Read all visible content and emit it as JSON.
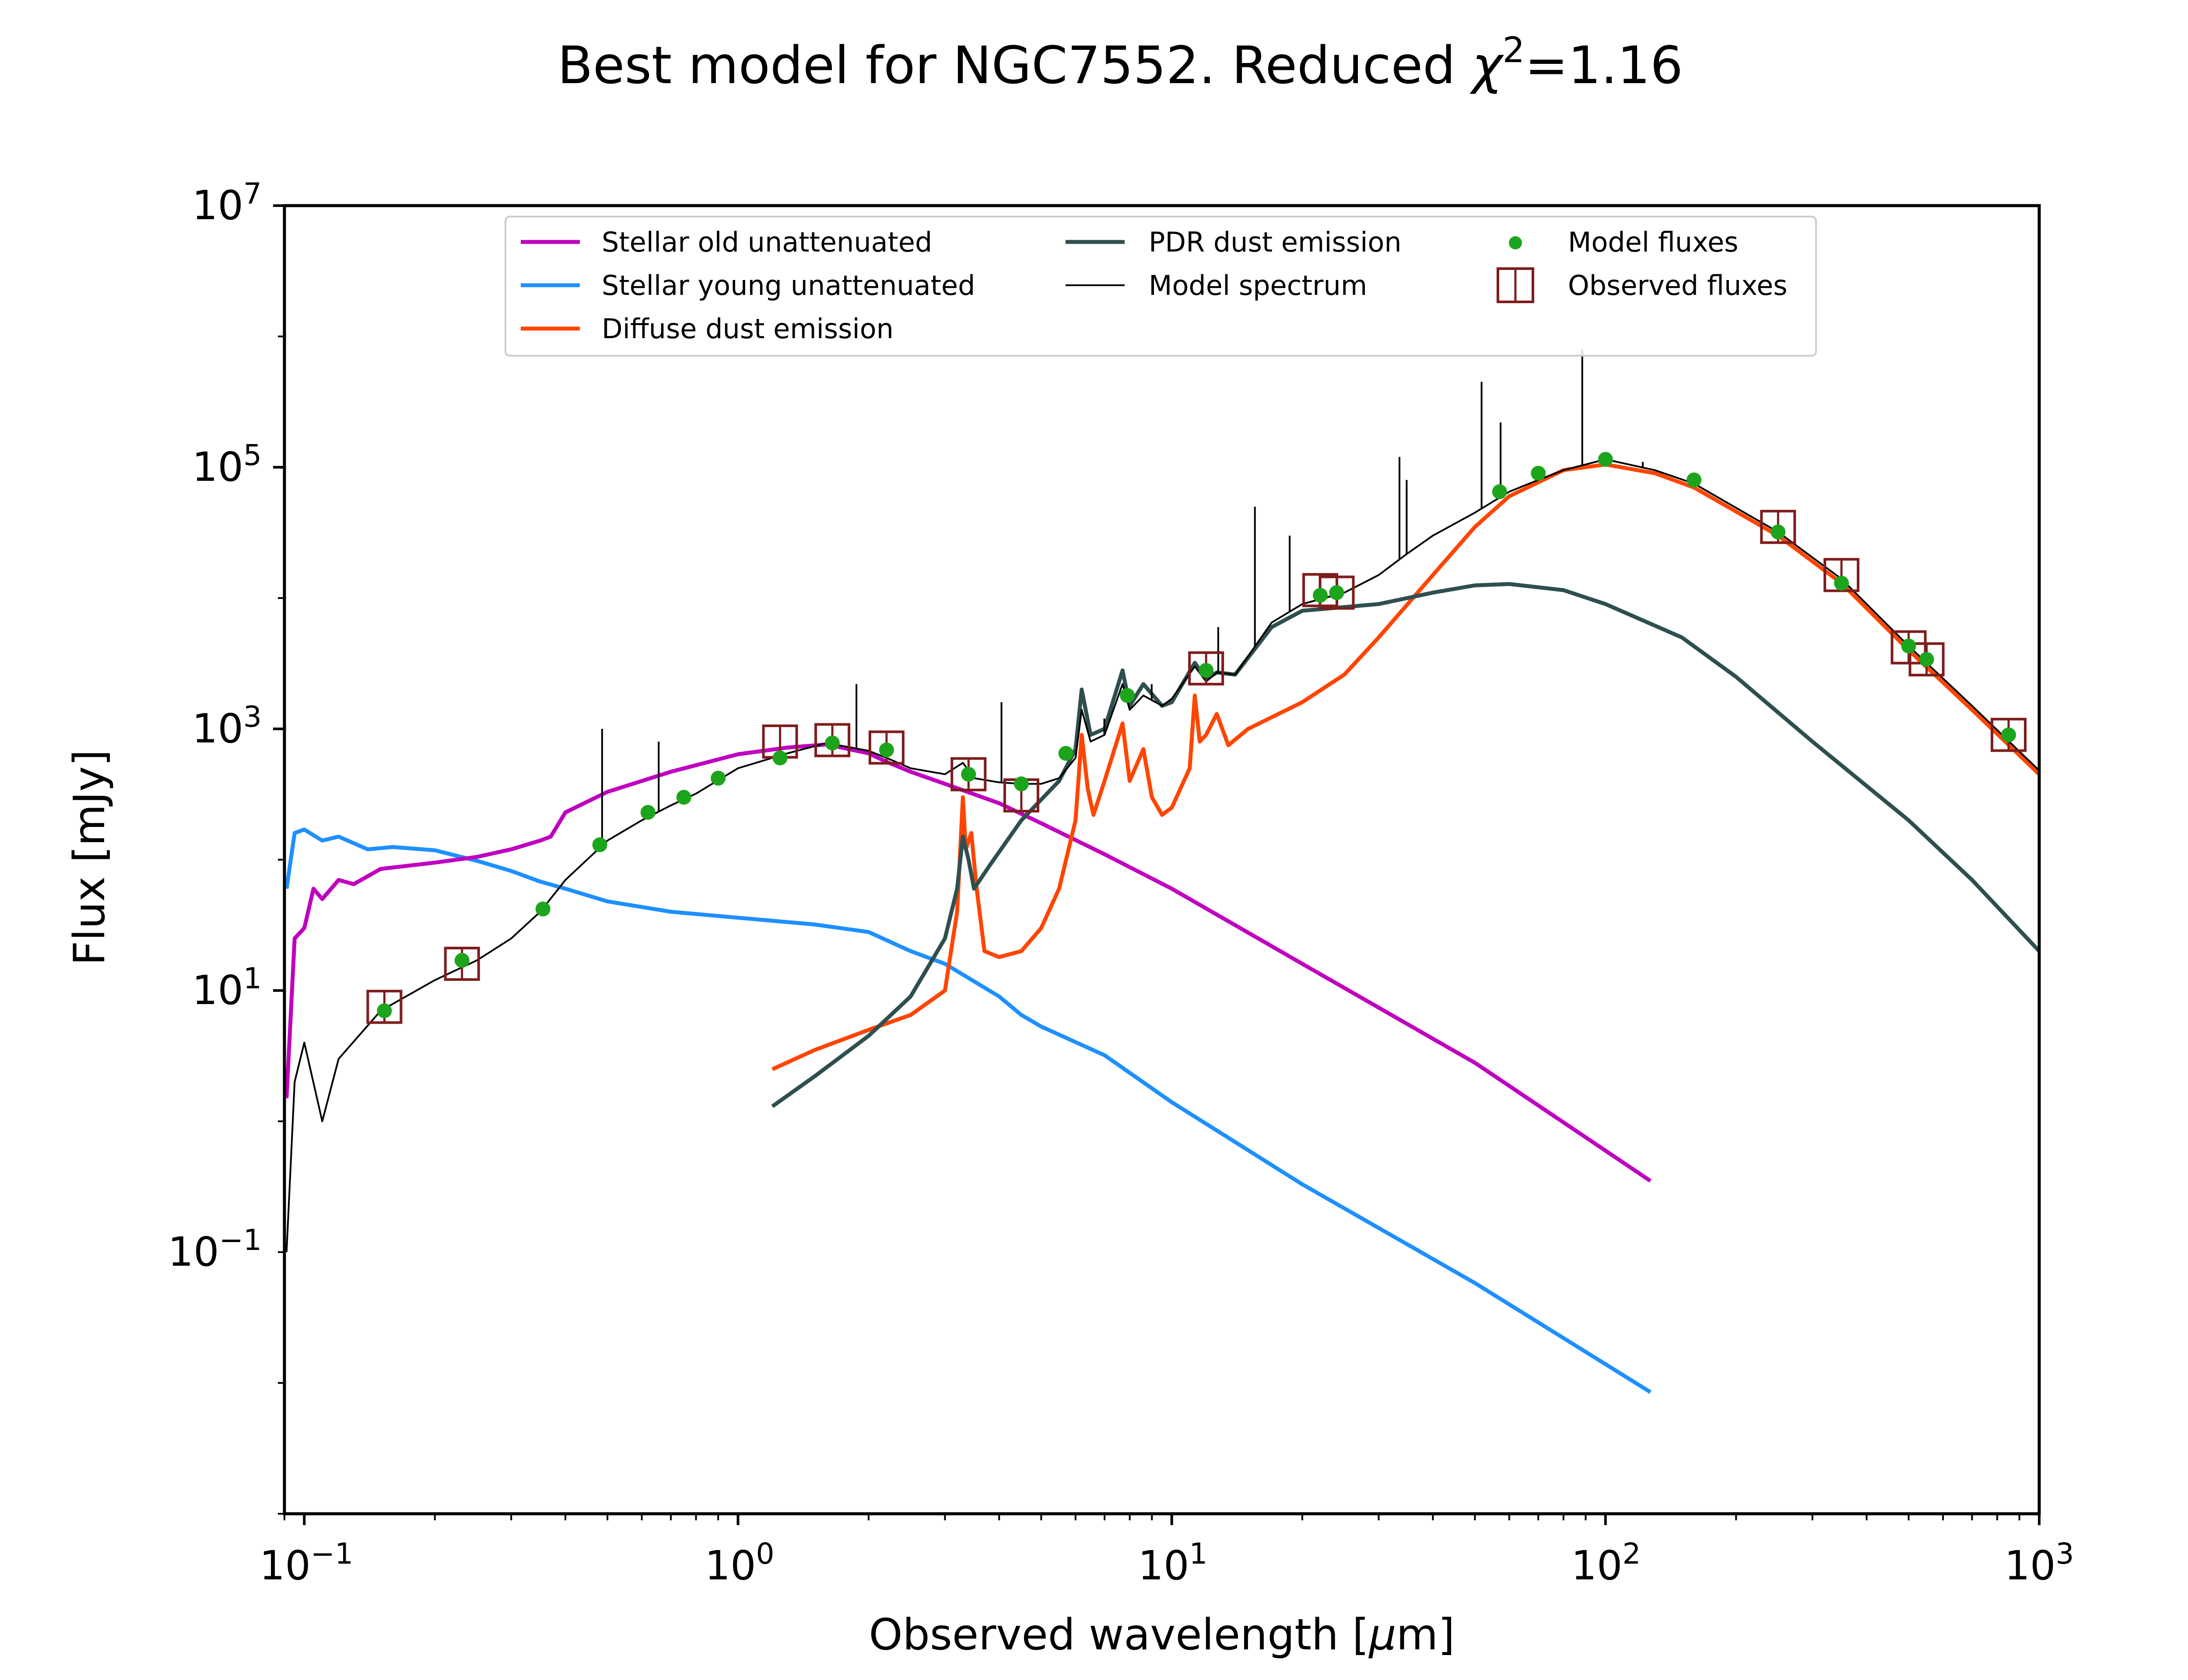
{
  "chart_data": {
    "type": "line",
    "title": "Best model for NGC7552. Reduced χ²=1.16",
    "title_parts": {
      "prefix": "Best model for NGC7552. Reduced ",
      "chi": "χ",
      "exp": "2",
      "suffix": "=1.16"
    },
    "xlabel": {
      "prefix": "Observed wavelength [",
      "mu": "μ",
      "suffix": "m]"
    },
    "ylabel": "Flux [mJy]",
    "x_scale": "log",
    "y_scale": "log",
    "xlim": [
      0.09,
      1000
    ],
    "ylim": [
      0.001,
      10000000
    ],
    "x_ticks": [
      {
        "base": "10",
        "exp": "−1",
        "value": 0.1
      },
      {
        "base": "10",
        "exp": "0",
        "value": 1
      },
      {
        "base": "10",
        "exp": "1",
        "value": 10
      },
      {
        "base": "10",
        "exp": "2",
        "value": 100
      },
      {
        "base": "10",
        "exp": "3",
        "value": 1000
      }
    ],
    "y_ticks": [
      {
        "base": "10",
        "exp": "−1",
        "value": 0.1
      },
      {
        "base": "10",
        "exp": "1",
        "value": 10
      },
      {
        "base": "10",
        "exp": "3",
        "value": 1000
      },
      {
        "base": "10",
        "exp": "5",
        "value": 100000
      },
      {
        "base": "10",
        "exp": "7",
        "value": 10000000
      }
    ],
    "grid": false,
    "legend_position": "top-center",
    "series": [
      {
        "name": "Stellar old unattenuated",
        "color": "#bf00bf",
        "points": [
          [
            0.091,
            1.5
          ],
          [
            0.095,
            25
          ],
          [
            0.1,
            30
          ],
          [
            0.105,
            60
          ],
          [
            0.11,
            50
          ],
          [
            0.12,
            70
          ],
          [
            0.13,
            65
          ],
          [
            0.15,
            85
          ],
          [
            0.2,
            95
          ],
          [
            0.25,
            105
          ],
          [
            0.3,
            120
          ],
          [
            0.35,
            140
          ],
          [
            0.37,
            150
          ],
          [
            0.4,
            230
          ],
          [
            0.5,
            330
          ],
          [
            0.7,
            470
          ],
          [
            1.0,
            640
          ],
          [
            1.3,
            720
          ],
          [
            1.6,
            760
          ],
          [
            2.0,
            650
          ],
          [
            2.2,
            560
          ],
          [
            2.5,
            470
          ],
          [
            3.0,
            380
          ],
          [
            4.0,
            270
          ],
          [
            5.0,
            190
          ],
          [
            7.0,
            110
          ],
          [
            10.0,
            60
          ],
          [
            20.0,
            16
          ],
          [
            50.0,
            2.8
          ],
          [
            127,
            0.35
          ]
        ]
      },
      {
        "name": "Stellar young unattenuated",
        "color": "#1e90ff",
        "points": [
          [
            0.091,
            60
          ],
          [
            0.095,
            160
          ],
          [
            0.1,
            170
          ],
          [
            0.11,
            140
          ],
          [
            0.12,
            150
          ],
          [
            0.14,
            120
          ],
          [
            0.16,
            125
          ],
          [
            0.2,
            118
          ],
          [
            0.25,
            98
          ],
          [
            0.3,
            82
          ],
          [
            0.35,
            68
          ],
          [
            0.4,
            60
          ],
          [
            0.5,
            48
          ],
          [
            0.7,
            40
          ],
          [
            1.0,
            36
          ],
          [
            1.5,
            32
          ],
          [
            2.0,
            28
          ],
          [
            2.5,
            20
          ],
          [
            3.0,
            16
          ],
          [
            4.0,
            9
          ],
          [
            4.5,
            6.5
          ],
          [
            5.0,
            5.3
          ],
          [
            7.0,
            3.2
          ],
          [
            10.0,
            1.4
          ],
          [
            20.0,
            0.33
          ],
          [
            50.0,
            0.058
          ],
          [
            127,
            0.0085
          ]
        ]
      },
      {
        "name": "Diffuse dust emission",
        "color": "#ff4500",
        "points": [
          [
            1.2,
            2.5
          ],
          [
            1.5,
            3.5
          ],
          [
            2.0,
            5
          ],
          [
            2.5,
            6.5
          ],
          [
            3.0,
            10
          ],
          [
            3.2,
            40
          ],
          [
            3.3,
            300
          ],
          [
            3.35,
            120
          ],
          [
            3.45,
            160
          ],
          [
            3.55,
            60
          ],
          [
            3.7,
            20
          ],
          [
            4.0,
            18
          ],
          [
            4.5,
            20
          ],
          [
            5.0,
            30
          ],
          [
            5.5,
            60
          ],
          [
            6.0,
            200
          ],
          [
            6.2,
            900
          ],
          [
            6.4,
            350
          ],
          [
            6.6,
            220
          ],
          [
            7.0,
            400
          ],
          [
            7.7,
            1100
          ],
          [
            8.0,
            400
          ],
          [
            8.6,
            700
          ],
          [
            9.0,
            300
          ],
          [
            9.5,
            220
          ],
          [
            10.0,
            250
          ],
          [
            11.0,
            500
          ],
          [
            11.3,
            1800
          ],
          [
            11.6,
            800
          ],
          [
            12.0,
            900
          ],
          [
            12.7,
            1300
          ],
          [
            13.5,
            750
          ],
          [
            15.0,
            1000
          ],
          [
            20.0,
            1600
          ],
          [
            25.0,
            2600
          ],
          [
            30.0,
            5000
          ],
          [
            40.0,
            15000
          ],
          [
            50.0,
            35000
          ],
          [
            60.0,
            60000
          ],
          [
            80.0,
            95000
          ],
          [
            100.0,
            105000
          ],
          [
            130.0,
            90000
          ],
          [
            160.0,
            70000
          ],
          [
            250.0,
            30000
          ],
          [
            350.0,
            13000
          ],
          [
            500.0,
            4000
          ],
          [
            700.0,
            1400
          ],
          [
            1000.0,
            450
          ]
        ]
      },
      {
        "name": "PDR dust emission",
        "color": "#2f4f4f",
        "points": [
          [
            1.2,
            1.3
          ],
          [
            1.5,
            2.2
          ],
          [
            2.0,
            4.5
          ],
          [
            2.5,
            9
          ],
          [
            3.0,
            25
          ],
          [
            3.2,
            60
          ],
          [
            3.3,
            150
          ],
          [
            3.4,
            100
          ],
          [
            3.5,
            60
          ],
          [
            3.8,
            90
          ],
          [
            4.5,
            200
          ],
          [
            5.5,
            400
          ],
          [
            6.0,
            700
          ],
          [
            6.2,
            2000
          ],
          [
            6.5,
            900
          ],
          [
            7.0,
            1000
          ],
          [
            7.7,
            2800
          ],
          [
            8.0,
            1500
          ],
          [
            8.6,
            2200
          ],
          [
            9.5,
            1500
          ],
          [
            10.0,
            1600
          ],
          [
            11.3,
            3200
          ],
          [
            12.0,
            2400
          ],
          [
            12.7,
            2700
          ],
          [
            14.0,
            2600
          ],
          [
            17.0,
            6000
          ],
          [
            20.0,
            8000
          ],
          [
            30.0,
            9000
          ],
          [
            40.0,
            11000
          ],
          [
            50.0,
            12500
          ],
          [
            60.0,
            12800
          ],
          [
            80.0,
            11500
          ],
          [
            100.0,
            9000
          ],
          [
            150.0,
            5000
          ],
          [
            200.0,
            2500
          ],
          [
            300.0,
            800
          ],
          [
            500.0,
            200
          ],
          [
            700.0,
            70
          ],
          [
            1000.0,
            20
          ]
        ]
      },
      {
        "name": "Model spectrum",
        "color": "#000000",
        "points": [
          [
            0.091,
            0.1
          ],
          [
            0.095,
            2
          ],
          [
            0.1,
            4
          ],
          [
            0.11,
            1
          ],
          [
            0.12,
            3
          ],
          [
            0.15,
            7
          ],
          [
            0.2,
            12
          ],
          [
            0.25,
            17
          ],
          [
            0.3,
            25
          ],
          [
            0.35,
            40
          ],
          [
            0.4,
            70
          ],
          [
            0.5,
            140
          ],
          [
            0.6,
            200
          ],
          [
            0.7,
            260
          ],
          [
            0.8,
            320
          ],
          [
            1.0,
            500
          ],
          [
            1.3,
            650
          ],
          [
            1.6,
            780
          ],
          [
            2.0,
            680
          ],
          [
            2.2,
            600
          ],
          [
            2.5,
            500
          ],
          [
            3.0,
            450
          ],
          [
            3.3,
            550
          ],
          [
            3.5,
            420
          ],
          [
            4.0,
            390
          ],
          [
            4.5,
            380
          ],
          [
            5.0,
            380
          ],
          [
            5.5,
            420
          ],
          [
            6.0,
            600
          ],
          [
            6.2,
            1400
          ],
          [
            6.5,
            800
          ],
          [
            7.0,
            900
          ],
          [
            7.7,
            2200
          ],
          [
            8.0,
            1400
          ],
          [
            8.6,
            1800
          ],
          [
            9.5,
            1500
          ],
          [
            10.0,
            1700
          ],
          [
            11.3,
            3000
          ],
          [
            12.0,
            2300
          ],
          [
            12.7,
            2700
          ],
          [
            14.0,
            2600
          ],
          [
            17.0,
            6500
          ],
          [
            20.0,
            9000
          ],
          [
            25.0,
            11000
          ],
          [
            30.0,
            15000
          ],
          [
            35.0,
            22000
          ],
          [
            40.0,
            30000
          ],
          [
            50.0,
            45000
          ],
          [
            60.0,
            65000
          ],
          [
            70.0,
            80000
          ],
          [
            80.0,
            95000
          ],
          [
            100.0,
            115000
          ],
          [
            130.0,
            95000
          ],
          [
            160.0,
            75000
          ],
          [
            250.0,
            32000
          ],
          [
            350.0,
            14000
          ],
          [
            500.0,
            4300
          ],
          [
            700.0,
            1500
          ],
          [
            1000.0,
            480
          ]
        ]
      }
    ],
    "emission_lines": [
      [
        0.486,
        1000
      ],
      [
        0.6563,
        800
      ],
      [
        1.875,
        2200
      ],
      [
        4.05,
        1600
      ],
      [
        6.99,
        1200
      ],
      [
        8.99,
        2200
      ],
      [
        10.5,
        2100
      ],
      [
        12.8,
        6000
      ],
      [
        15.55,
        50000
      ],
      [
        18.7,
        30000
      ],
      [
        33.5,
        120000
      ],
      [
        34.8,
        80000
      ],
      [
        51.8,
        450000
      ],
      [
        57.3,
        220000
      ],
      [
        88.4,
        800000
      ],
      [
        121.9,
        110000
      ]
    ],
    "model_fluxes": {
      "name": "Model fluxes",
      "color": "#1ca51c",
      "points": [
        [
          0.153,
          7
        ],
        [
          0.231,
          17
        ],
        [
          0.355,
          42
        ],
        [
          0.48,
          130
        ],
        [
          0.62,
          230
        ],
        [
          0.75,
          300
        ],
        [
          0.9,
          420
        ],
        [
          1.25,
          600
        ],
        [
          1.65,
          780
        ],
        [
          2.2,
          690
        ],
        [
          3.4,
          450
        ],
        [
          4.5,
          380
        ],
        [
          5.7,
          650
        ],
        [
          7.9,
          1800
        ],
        [
          12.0,
          2800
        ],
        [
          22.0,
          10500
        ],
        [
          24.0,
          11000
        ],
        [
          57.0,
          65000
        ],
        [
          70.0,
          90000
        ],
        [
          100.0,
          115000
        ],
        [
          160.0,
          80000
        ],
        [
          250.0,
          32000
        ],
        [
          350.0,
          13000
        ],
        [
          500.0,
          4300
        ],
        [
          550.0,
          3400
        ],
        [
          850.0,
          900
        ]
      ]
    },
    "observed_fluxes": {
      "name": "Observed fluxes",
      "color": "#7f1d1d",
      "points": [
        [
          0.153,
          7.5,
          0.8
        ],
        [
          0.231,
          16,
          1.5
        ],
        [
          1.25,
          800,
          100
        ],
        [
          1.65,
          820,
          100
        ],
        [
          2.2,
          720,
          80
        ],
        [
          3.4,
          450,
          50
        ],
        [
          4.5,
          310,
          60
        ],
        [
          12.0,
          2900,
          400
        ],
        [
          22.0,
          11500,
          1500
        ],
        [
          24.0,
          11000,
          1500
        ],
        [
          250.0,
          35000,
          4000
        ],
        [
          350.0,
          15000,
          3000
        ],
        [
          500.0,
          4200,
          500
        ],
        [
          550.0,
          3400,
          400
        ],
        [
          850.0,
          900,
          100
        ]
      ]
    }
  }
}
